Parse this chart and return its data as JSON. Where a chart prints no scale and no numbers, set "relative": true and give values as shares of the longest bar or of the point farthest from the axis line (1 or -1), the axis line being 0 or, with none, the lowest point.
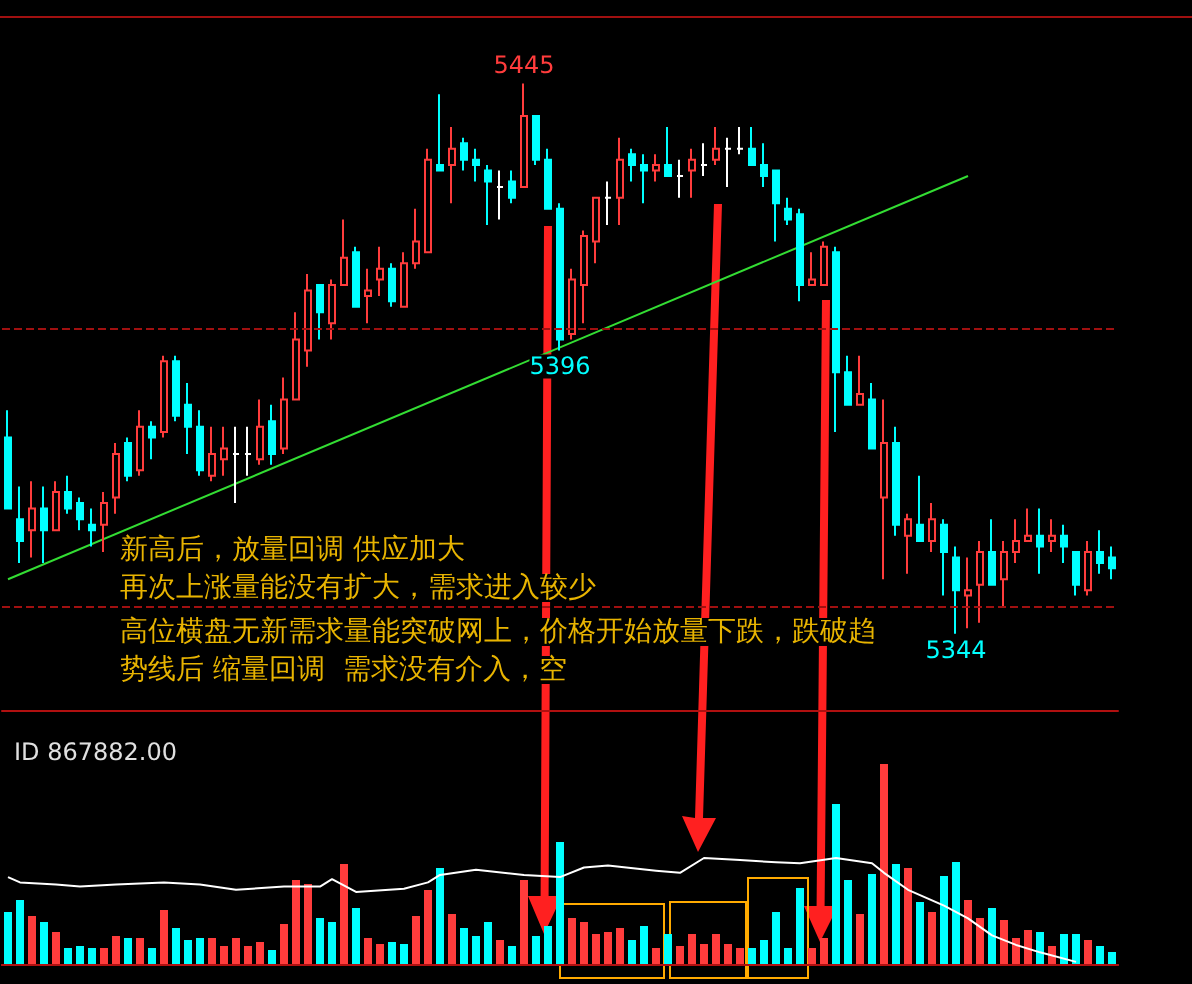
{
  "chart_data": [
    {
      "type": "candlestick",
      "ylim": [
        5330,
        5457
      ],
      "categories": [
        null,
        null,
        null,
        null,
        null,
        null,
        null,
        null,
        null,
        null,
        null,
        null,
        null,
        null,
        null,
        null,
        null,
        null,
        null,
        null,
        null,
        null,
        null,
        null,
        null,
        null,
        null,
        null,
        null,
        null,
        null,
        null,
        null,
        null,
        null,
        null,
        null,
        null,
        null,
        null,
        null,
        null,
        null,
        null,
        null,
        null,
        null,
        null,
        null,
        null,
        null,
        null,
        null,
        null,
        null,
        null,
        null,
        null,
        null,
        null,
        null,
        null,
        null,
        null,
        null,
        null,
        null,
        null,
        null,
        null,
        null,
        null,
        null,
        null,
        null,
        null,
        null,
        null,
        null,
        null,
        null,
        null,
        null,
        null,
        null,
        null,
        null,
        null,
        null,
        null,
        null,
        null,
        null
      ],
      "ohlc": [
        [
          5380,
          5385,
          5367,
          5367
        ],
        [
          5365,
          5371,
          5357,
          5361
        ],
        [
          5363,
          5372,
          5358,
          5367
        ],
        [
          5367,
          5371,
          5357,
          5363
        ],
        [
          5363,
          5372,
          5363,
          5370
        ],
        [
          5370,
          5373,
          5366,
          5367
        ],
        [
          5368,
          5369,
          5363,
          5365
        ],
        [
          5364,
          5367,
          5360,
          5363
        ],
        [
          5364,
          5370,
          5359,
          5368
        ],
        [
          5369,
          5379,
          5366,
          5377
        ],
        [
          5379,
          5380,
          5372,
          5373
        ],
        [
          5374,
          5385,
          5373,
          5382
        ],
        [
          5382,
          5383,
          5376,
          5380
        ],
        [
          5381,
          5395,
          5380,
          5394
        ],
        [
          5394,
          5395,
          5383,
          5384
        ],
        [
          5386,
          5390,
          5377,
          5382
        ],
        [
          5382,
          5385,
          5373,
          5374
        ],
        [
          5373,
          5382,
          5372,
          5377
        ],
        [
          5376,
          5382,
          5373,
          5378
        ],
        [
          5377,
          5382,
          5368,
          5377
        ],
        [
          5377,
          5382,
          5373,
          5377
        ],
        [
          5376,
          5387,
          5375,
          5382
        ],
        [
          5383,
          5386,
          5375,
          5377
        ],
        [
          5378,
          5391,
          5377,
          5387
        ],
        [
          5387,
          5403,
          5387,
          5398
        ],
        [
          5396,
          5410,
          5393,
          5407
        ],
        [
          5408,
          5408,
          5398,
          5403
        ],
        [
          5401,
          5409,
          5398,
          5408
        ],
        [
          5408,
          5420,
          5408,
          5413
        ],
        [
          5414,
          5415,
          5404,
          5404
        ],
        [
          5406,
          5411,
          5401,
          5407
        ],
        [
          5409,
          5415,
          5406,
          5411
        ],
        [
          5411,
          5412,
          5404,
          5405
        ],
        [
          5404,
          5414,
          5404,
          5412
        ],
        [
          5412,
          5422,
          5411,
          5416
        ],
        [
          5414,
          5433,
          5414,
          5431
        ],
        [
          5430,
          5443,
          5429,
          5429
        ],
        [
          5430,
          5437,
          5423,
          5433
        ],
        [
          5434,
          5435,
          5429,
          5431
        ],
        [
          5431,
          5433,
          5427,
          5430
        ],
        [
          5429,
          5430,
          5419,
          5427
        ],
        [
          5426,
          5429,
          5420,
          5426
        ],
        [
          5427,
          5429,
          5423,
          5424
        ],
        [
          5426,
          5445,
          5426,
          5439
        ],
        [
          5439,
          5439,
          5430,
          5431
        ],
        [
          5431,
          5433,
          5422,
          5422
        ],
        [
          5422,
          5423,
          5396,
          5398
        ],
        [
          5399,
          5411,
          5398,
          5409
        ],
        [
          5408,
          5418,
          5401,
          5417
        ],
        [
          5416,
          5424,
          5412,
          5424
        ],
        [
          5424,
          5427,
          5419,
          5424
        ],
        [
          5424,
          5435,
          5419,
          5431
        ],
        [
          5432,
          5433,
          5427,
          5430
        ],
        [
          5430,
          5432,
          5423,
          5429
        ],
        [
          5429,
          5432,
          5427,
          5430
        ],
        [
          5430,
          5437,
          5428,
          5428
        ],
        [
          5428,
          5431,
          5424,
          5428
        ],
        [
          5429,
          5433,
          5424,
          5431
        ],
        [
          5430,
          5434,
          5428,
          5430
        ],
        [
          5431,
          5437,
          5430,
          5433
        ],
        [
          5433,
          5435,
          5426,
          5433
        ],
        [
          5433,
          5437,
          5432,
          5433
        ],
        [
          5433,
          5437,
          5430,
          5430
        ],
        [
          5430,
          5434,
          5426,
          5428
        ],
        [
          5429,
          5429,
          5416,
          5423
        ],
        [
          5422,
          5424,
          5419,
          5420
        ],
        [
          5421,
          5422,
          5405,
          5408
        ],
        [
          5408,
          5414,
          5408,
          5409
        ],
        [
          5408,
          5416,
          5408,
          5415
        ],
        [
          5414,
          5415,
          5381,
          5392
        ],
        [
          5392,
          5395,
          5386,
          5386
        ],
        [
          5386,
          5395,
          5386,
          5388
        ],
        [
          5387,
          5390,
          5378,
          5378
        ],
        [
          5369,
          5387,
          5354,
          5379
        ],
        [
          5379,
          5382,
          5362,
          5364
        ],
        [
          5362,
          5366,
          5355,
          5365
        ],
        [
          5364,
          5373,
          5361,
          5361
        ],
        [
          5361,
          5368,
          5359,
          5365
        ],
        [
          5364,
          5365,
          5351,
          5359
        ],
        [
          5358,
          5360,
          5344,
          5352
        ],
        [
          5351,
          5358,
          5345,
          5352
        ],
        [
          5353,
          5361,
          5346,
          5359
        ],
        [
          5359,
          5365,
          5353,
          5353
        ],
        [
          5354,
          5361,
          5349,
          5359
        ],
        [
          5359,
          5365,
          5357,
          5361
        ],
        [
          5361,
          5367,
          5361,
          5362
        ],
        [
          5362,
          5367,
          5355,
          5360
        ],
        [
          5361,
          5365,
          5359,
          5362
        ],
        [
          5362,
          5364,
          5357,
          5360
        ],
        [
          5359,
          5359,
          5351,
          5353
        ],
        [
          5352,
          5361,
          5351,
          5359
        ],
        [
          5359,
          5363,
          5355,
          5357
        ],
        [
          5358,
          5360,
          5354,
          5356
        ]
      ],
      "colors": [
        "#00ffff",
        "#00ffff",
        "#ff3c3c",
        "#00ffff",
        "#ff3c3c",
        "#00ffff",
        "#00ffff",
        "#00ffff",
        "#ff3c3c",
        "#ff3c3c",
        "#00ffff",
        "#ff3c3c",
        "#00ffff",
        "#ff3c3c",
        "#00ffff",
        "#00ffff",
        "#00ffff",
        "#ff3c3c",
        "#ff3c3c",
        "#ffffff",
        "#ffffff",
        "#ff3c3c",
        "#00ffff",
        "#ff3c3c",
        "#ff3c3c",
        "#ff3c3c",
        "#00ffff",
        "#ff3c3c",
        "#ff3c3c",
        "#00ffff",
        "#ff3c3c",
        "#ff3c3c",
        "#00ffff",
        "#ff3c3c",
        "#ff3c3c",
        "#ff3c3c",
        "#00ffff",
        "#ff3c3c",
        "#00ffff",
        "#00ffff",
        "#00ffff",
        "#ffffff",
        "#00ffff",
        "#ff3c3c",
        "#00ffff",
        "#00ffff",
        "#00ffff",
        "#ff3c3c",
        "#ff3c3c",
        "#ff3c3c",
        "#ffffff",
        "#ff3c3c",
        "#00ffff",
        "#00ffff",
        "#ff3c3c",
        "#00ffff",
        "#ffffff",
        "#ff3c3c",
        "#ffffff",
        "#ff3c3c",
        "#ffffff",
        "#ffffff",
        "#00ffff",
        "#00ffff",
        "#00ffff",
        "#00ffff",
        "#00ffff",
        "#ff3c3c",
        "#ff3c3c",
        "#00ffff",
        "#00ffff",
        "#ff3c3c",
        "#00ffff",
        "#ff3c3c",
        "#00ffff",
        "#ff3c3c",
        "#00ffff",
        "#ff3c3c",
        "#00ffff",
        "#00ffff",
        "#ff3c3c",
        "#ff3c3c",
        "#00ffff",
        "#ff3c3c",
        "#ff3c3c",
        "#ff3c3c",
        "#00ffff",
        "#ff3c3c",
        "#00ffff",
        "#00ffff",
        "#ff3c3c",
        "#00ffff",
        "#00ffff"
      ],
      "series": [
        {
          "type": "line",
          "color": "#33dd33",
          "values": [
            5354,
            null,
            null,
            null,
            null,
            null,
            null,
            null,
            null,
            null,
            null,
            null,
            null,
            null,
            null,
            null,
            null,
            null,
            null,
            null,
            null,
            null,
            null,
            null,
            null,
            null,
            null,
            null,
            null,
            null,
            null,
            null,
            null,
            null,
            null,
            null,
            null,
            null,
            null,
            null,
            null,
            null,
            null,
            null,
            null,
            null,
            null,
            null,
            null,
            null,
            null,
            null,
            null,
            null,
            null,
            null,
            null,
            null,
            null,
            null,
            null,
            null,
            null,
            null,
            null,
            null,
            null,
            null,
            null,
            null,
            null,
            null,
            null,
            null,
            null,
            null,
            null,
            null,
            null,
            null,
            5428,
            null,
            null,
            null,
            null,
            null,
            null,
            null,
            null,
            null,
            null,
            null,
            null
          ]
        }
      ],
      "ref_lines": [
        {
          "axis": "y",
          "value": 5400,
          "color": "#a01010",
          "line_style": "dashed"
        },
        {
          "axis": "y",
          "value": 5349,
          "color": "#a01010",
          "line_style": "dashed"
        }
      ],
      "annotations": [
        {
          "text": "5445",
          "y": 5445
        },
        {
          "text": "5396",
          "y": 5396
        },
        {
          "text": "5344",
          "y": 5344
        },
        "新高后，放量回调 供应加大",
        "再次上涨量能没有扩大，需求进入较少",
        "高位横盘无新需求量能突破网上，价格开始放量下跌，跌破趋",
        "势线后 缩量回调  需求没有介入，空"
      ]
    },
    {
      "type": "bar",
      "title": "ID 867882.00",
      "relative": true,
      "categories": [
        null,
        null,
        null,
        null,
        null,
        null,
        null,
        null,
        null,
        null,
        null,
        null,
        null,
        null,
        null,
        null,
        null,
        null,
        null,
        null,
        null,
        null,
        null,
        null,
        null,
        null,
        null,
        null,
        null,
        null,
        null,
        null,
        null,
        null,
        null,
        null,
        null,
        null,
        null,
        null,
        null,
        null,
        null,
        null,
        null,
        null,
        null,
        null,
        null,
        null,
        null,
        null,
        null,
        null,
        null,
        null,
        null,
        null,
        null,
        null,
        null,
        null,
        null,
        null,
        null,
        null,
        null,
        null,
        null,
        null,
        null,
        null,
        null,
        null,
        null,
        null,
        null,
        null,
        null,
        null,
        null,
        null,
        null,
        null,
        null,
        null,
        null,
        null,
        null,
        null,
        null,
        null,
        null
      ],
      "values": [
        0.26,
        0.32,
        0.24,
        0.21,
        0.16,
        0.08,
        0.09,
        0.08,
        0.08,
        0.14,
        0.13,
        0.13,
        0.08,
        0.27,
        0.18,
        0.12,
        0.13,
        0.13,
        0.09,
        0.13,
        0.09,
        0.11,
        0.07,
        0.2,
        0.42,
        0.4,
        0.23,
        0.21,
        0.5,
        0.28,
        0.13,
        0.1,
        0.11,
        0.1,
        0.24,
        0.37,
        0.48,
        0.25,
        0.18,
        0.14,
        0.21,
        0.12,
        0.09,
        0.42,
        0.14,
        0.19,
        0.61,
        0.23,
        0.21,
        0.15,
        0.16,
        0.18,
        0.12,
        0.19,
        0.08,
        0.15,
        0.09,
        0.15,
        0.1,
        0.15,
        0.1,
        0.08,
        0.08,
        0.12,
        0.26,
        0.08,
        0.38,
        0.08,
        0.13,
        0.8,
        0.42,
        0.25,
        0.45,
        1,
        0.5,
        0.48,
        0.31,
        0.26,
        0.44,
        0.51,
        0.32,
        0.23,
        0.28,
        0.22,
        0.13,
        0.17,
        0.16,
        0.09,
        0.15,
        0.15,
        0.12,
        0.09,
        0.06
      ],
      "colors": [
        "#00ffff",
        "#00ffff",
        "#ff3c3c",
        "#00ffff",
        "#ff3c3c",
        "#00ffff",
        "#00ffff",
        "#00ffff",
        "#ff3c3c",
        "#ff3c3c",
        "#00ffff",
        "#ff3c3c",
        "#00ffff",
        "#ff3c3c",
        "#00ffff",
        "#00ffff",
        "#00ffff",
        "#ff3c3c",
        "#ff3c3c",
        "#ff3c3c",
        "#ff3c3c",
        "#ff3c3c",
        "#00ffff",
        "#ff3c3c",
        "#ff3c3c",
        "#ff3c3c",
        "#00ffff",
        "#00ffff",
        "#ff3c3c",
        "#00ffff",
        "#ff3c3c",
        "#ff3c3c",
        "#00ffff",
        "#00ffff",
        "#ff3c3c",
        "#ff3c3c",
        "#00ffff",
        "#ff3c3c",
        "#00ffff",
        "#00ffff",
        "#00ffff",
        "#ff3c3c",
        "#00ffff",
        "#ff3c3c",
        "#00ffff",
        "#00ffff",
        "#00ffff",
        "#ff3c3c",
        "#ff3c3c",
        "#ff3c3c",
        "#ff3c3c",
        "#ff3c3c",
        "#00ffff",
        "#00ffff",
        "#ff3c3c",
        "#00ffff",
        "#ff3c3c",
        "#ff3c3c",
        "#ff3c3c",
        "#ff3c3c",
        "#ff3c3c",
        "#ff3c3c",
        "#00ffff",
        "#00ffff",
        "#00ffff",
        "#00ffff",
        "#00ffff",
        "#ff3c3c",
        "#ff3c3c",
        "#00ffff",
        "#00ffff",
        "#ff3c3c",
        "#00ffff",
        "#ff3c3c",
        "#00ffff",
        "#ff3c3c",
        "#00ffff",
        "#ff3c3c",
        "#00ffff",
        "#00ffff",
        "#ff3c3c",
        "#ff3c3c",
        "#00ffff",
        "#ff3c3c",
        "#ff3c3c",
        "#ff3c3c",
        "#00ffff",
        "#ff3c3c",
        "#00ffff",
        "#00ffff",
        "#ff3c3c",
        "#00ffff",
        "#00ffff"
      ]
    },
    {
      "type": "line",
      "relative": true,
      "categories": [
        null,
        null,
        null,
        null,
        null,
        null,
        null,
        null,
        null,
        null,
        null,
        null,
        null,
        null,
        null,
        null,
        null,
        null,
        null,
        null,
        null,
        null,
        null,
        null,
        null,
        null,
        null,
        null,
        null,
        null,
        null,
        null,
        null,
        null,
        null,
        null,
        null,
        null,
        null,
        null,
        null,
        null,
        null,
        null,
        null,
        null,
        null,
        null,
        null,
        null,
        null,
        null,
        null,
        null,
        null,
        null,
        null,
        null,
        null,
        null,
        null,
        null,
        null,
        null,
        null,
        null,
        null,
        null,
        null,
        null,
        null,
        null,
        null,
        null,
        null,
        null,
        null,
        null,
        null,
        null,
        null,
        null,
        null,
        null,
        null,
        null,
        null,
        null,
        null,
        null,
        null,
        null,
        null
      ],
      "series": [
        {
          "color": "#ffffff",
          "values": [
            0.82,
            0.77,
            null,
            null,
            0.75,
            null,
            0.73,
            null,
            null,
            0.75,
            null,
            null,
            null,
            0.77,
            null,
            null,
            0.75,
            null,
            null,
            0.7,
            null,
            null,
            null,
            0.73,
            null,
            null,
            0.73,
            0.8,
            null,
            0.68,
            null,
            null,
            null,
            0.71,
            null,
            0.77,
            0.84,
            null,
            null,
            0.89,
            null,
            null,
            null,
            0.84,
            null,
            null,
            0.82,
            null,
            0.91,
            null,
            0.93,
            null,
            null,
            null,
            0.88,
            null,
            0.86,
            null,
            1,
            null,
            null,
            0.98,
            null,
            null,
            0.96,
            null,
            0.95,
            null,
            null,
            1,
            null,
            null,
            0.95,
            0.86,
            null,
            0.7,
            null,
            null,
            0.55,
            null,
            0.43,
            null,
            0.27,
            null,
            0.18,
            null,
            0.11,
            null,
            null,
            0.02,
            null,
            null,
            null
          ]
        }
      ]
    }
  ]
}
